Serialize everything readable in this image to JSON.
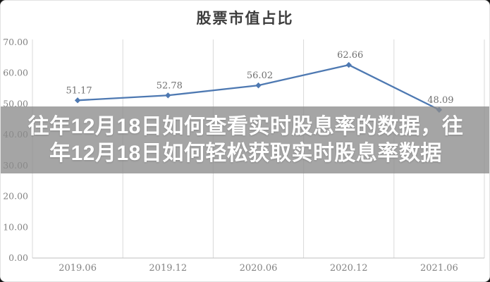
{
  "chart_data": {
    "type": "line",
    "title": "股票市值占比",
    "categories": [
      "2019.06",
      "2019.12",
      "2020.06",
      "2020.12",
      "2021.06"
    ],
    "values": [
      51.17,
      52.78,
      56.02,
      62.66,
      48.09
    ],
    "value_labels": [
      "51.17",
      "52.78",
      "56.02",
      "62.66",
      "48.09"
    ],
    "ytick_labels": [
      "0.00",
      "10.00",
      "20.00",
      "30.00",
      "40.00",
      "50.00",
      "60.00",
      "70.00"
    ],
    "ylim": [
      0,
      70
    ],
    "xlabel": "",
    "ylabel": "",
    "legend": "none",
    "grid": "vertical-only",
    "colors": {
      "line": "#4e79b2",
      "marker": "#4e79b2",
      "value_label": "#707070",
      "tick_label": "#828282",
      "gridline": "#d9d9d9",
      "axis_line": "#bfbfbf",
      "title": "#3d3d3d"
    }
  },
  "overlay": {
    "line1": "往年12月18日如何查看实时股息率的数据，往",
    "line2": "年12月18日如何轻松获取实时股息率数据",
    "background": "rgba(140,140,140,0.78)",
    "text_color": "#ffffff"
  }
}
